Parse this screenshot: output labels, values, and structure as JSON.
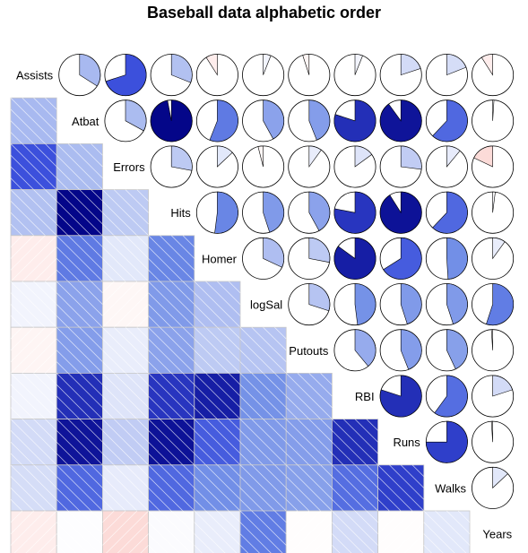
{
  "chart_data": {
    "type": "heatmap",
    "title": "Baseball data alphabetic order",
    "variables": [
      "Assists",
      "Atbat",
      "Errors",
      "Hits",
      "Homer",
      "logSal",
      "Putouts",
      "RBI",
      "Runs",
      "Walks",
      "Years"
    ],
    "lower_panel": "shade",
    "upper_panel": "pie",
    "correlation_range": [
      -1,
      1
    ],
    "colors": {
      "positive": "#0000FF",
      "positive_strong": "#00008B",
      "negative": "#FF0000"
    },
    "correlations": [
      [
        1.0,
        0.34,
        0.7,
        0.31,
        -0.09,
        0.06,
        -0.05,
        0.06,
        0.2,
        0.19,
        -0.09
      ],
      [
        0.34,
        1.0,
        0.33,
        0.97,
        0.56,
        0.42,
        0.44,
        0.8,
        0.9,
        0.62,
        0.01
      ],
      [
        0.7,
        0.33,
        1.0,
        0.28,
        0.13,
        -0.04,
        0.1,
        0.15,
        0.27,
        0.11,
        -0.18
      ],
      [
        0.31,
        0.97,
        0.28,
        1.0,
        0.52,
        0.45,
        0.42,
        0.78,
        0.91,
        0.62,
        0.02
      ],
      [
        -0.09,
        0.56,
        0.13,
        0.52,
        1.0,
        0.32,
        0.28,
        0.85,
        0.66,
        0.49,
        0.1
      ],
      [
        0.06,
        0.42,
        -0.04,
        0.45,
        0.32,
        1.0,
        0.3,
        0.48,
        0.45,
        0.45,
        0.55
      ],
      [
        -0.05,
        0.44,
        0.1,
        0.42,
        0.28,
        0.3,
        1.0,
        0.39,
        0.44,
        0.43,
        -0.01
      ],
      [
        0.06,
        0.8,
        0.15,
        0.78,
        0.85,
        0.48,
        0.39,
        1.0,
        0.8,
        0.6,
        0.2
      ],
      [
        0.2,
        0.9,
        0.27,
        0.91,
        0.66,
        0.45,
        0.44,
        0.8,
        1.0,
        0.75,
        -0.01
      ],
      [
        0.19,
        0.62,
        0.11,
        0.62,
        0.49,
        0.45,
        0.43,
        0.6,
        0.75,
        1.0,
        0.13
      ],
      [
        -0.09,
        0.01,
        -0.18,
        0.02,
        0.1,
        0.55,
        -0.01,
        0.2,
        -0.01,
        0.13,
        1.0
      ]
    ]
  }
}
